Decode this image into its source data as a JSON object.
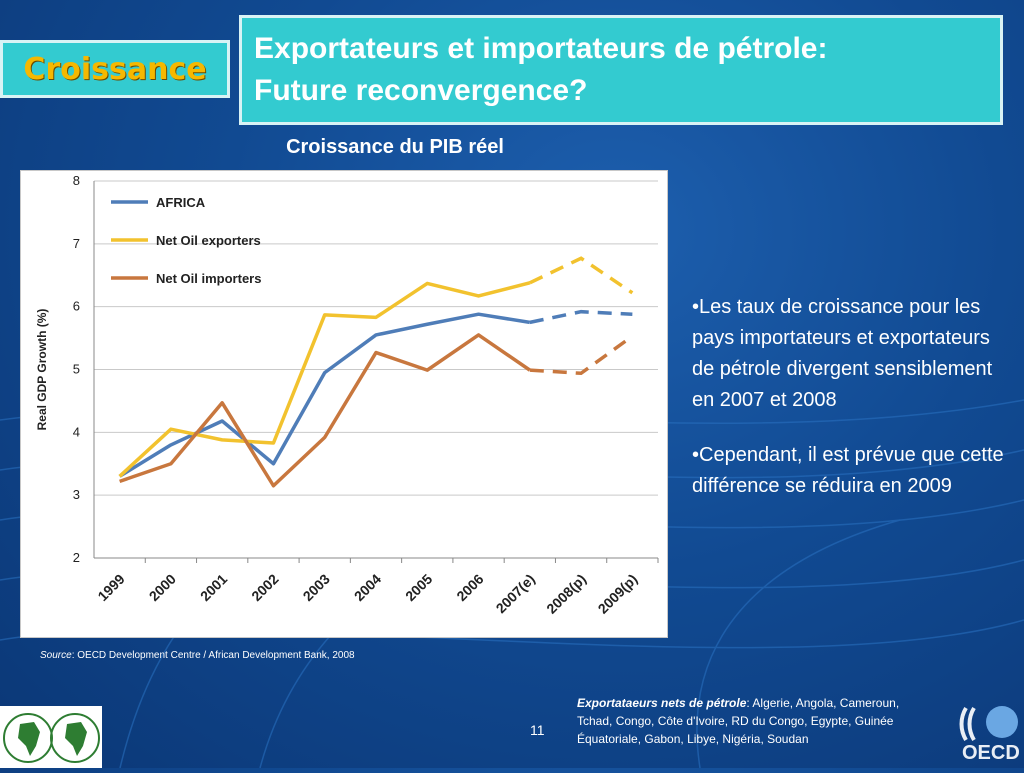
{
  "slide": {
    "section_label": "Croissance",
    "title_line1": "Exportateurs et importateurs de pétrole:",
    "title_line2": "Future reconvergence?",
    "chart_heading": "Croissance du PIB réel",
    "bullet1": "•Les taux de croissance pour les pays importateurs et exportateurs de pétrole divergent sensiblement en 2007 et 2008",
    "bullet2": "•Cependant, il est prévue que cette différence se réduira en 2009",
    "source_label": "Source",
    "source_text": ": OECD Development Centre / African Development Bank, 2008",
    "footnote_label": "Exportataeurs nets de pétrole",
    "footnote_text": ": Algerie, Angola, Cameroun, Tchad, Congo, Côte d'Ivoire,  RD du Congo, Egypte, Guinée Équatoriale, Gabon, Libye, Nigéria, Soudan",
    "page_number": "11",
    "oecd_label": "OECD"
  },
  "colors": {
    "africa": "#4f7db8",
    "exporters": "#f2c22e",
    "importers": "#c8773e",
    "badge_bg": "#33cbd0",
    "badge_text": "#f5b800"
  },
  "chart_data": {
    "type": "line",
    "title": "",
    "xlabel": "",
    "ylabel": "Real GDP Growth (%)",
    "ylim": [
      2,
      8
    ],
    "yticks": [
      2,
      3,
      4,
      5,
      6,
      7,
      8
    ],
    "categories": [
      "1999",
      "2000",
      "2001",
      "2002",
      "2003",
      "2004",
      "2005",
      "2006",
      "2007(e)",
      "2008(p)",
      "2009(p)"
    ],
    "projection_starts_at": "2007(e)",
    "grid": true,
    "legend_position": "top-left",
    "series": [
      {
        "name": "AFRICA",
        "color": "#4f7db8",
        "values": [
          3.3,
          3.8,
          4.18,
          3.5,
          4.95,
          5.55,
          5.72,
          5.88,
          5.75,
          5.92,
          5.88
        ]
      },
      {
        "name": "Net Oil exporters",
        "color": "#f2c22e",
        "values": [
          3.3,
          4.05,
          3.88,
          3.83,
          5.87,
          5.83,
          6.37,
          6.17,
          6.38,
          6.77,
          6.22
        ]
      },
      {
        "name": "Net Oil importers",
        "color": "#c8773e",
        "values": [
          3.22,
          3.5,
          4.47,
          3.15,
          3.92,
          5.27,
          4.99,
          5.55,
          4.99,
          4.94,
          5.53
        ]
      }
    ]
  }
}
